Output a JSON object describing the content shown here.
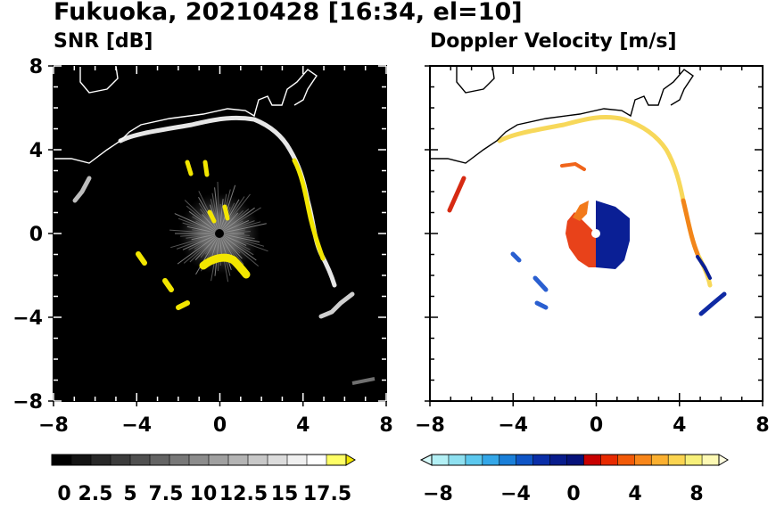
{
  "title": "Fukuoka, 20210428 [16:34, el=10]",
  "panels": [
    {
      "id": "snr",
      "title": "SNR [dB]",
      "background": "#000000",
      "colorbar": {
        "labels": [
          "0",
          "2.5",
          "5",
          "7.5",
          "10",
          "12.5",
          "15",
          "17.5"
        ],
        "extend": "max",
        "colors": [
          "#000000",
          "#141414",
          "#282828",
          "#3c3c3c",
          "#505050",
          "#646464",
          "#787878",
          "#8c8c8c",
          "#a0a0a0",
          "#b4b4b4",
          "#c8c8c8",
          "#dcdcdc",
          "#f0f0f0",
          "#ffffff",
          "#ffff66"
        ],
        "extend_color": "#f2e600"
      }
    },
    {
      "id": "doppler",
      "title": "Doppler Velocity [m/s]",
      "background": "#ffffff",
      "colorbar": {
        "labels": [
          "−8",
          "−4",
          "0",
          "4",
          "8"
        ],
        "extend": "both",
        "colors": [
          "#b3f0f5",
          "#8ee0f0",
          "#5cc8ee",
          "#34a7e8",
          "#1a7fd9",
          "#0f55c6",
          "#0a2ea8",
          "#081c8c",
          "#06127a",
          "#c80000",
          "#e82a00",
          "#f25a08",
          "#f8861a",
          "#fbb030",
          "#fbd450",
          "#f7f07a",
          "#fdf9b4"
        ],
        "low_color": "#d8fbfb",
        "high_color": "#fffde0"
      }
    }
  ],
  "axes": {
    "x_ticks": [
      "−8",
      "−4",
      "0",
      "4",
      "8"
    ],
    "y_ticks": [
      "8",
      "4",
      "0",
      "−4",
      "−8"
    ],
    "xlim": [
      -8,
      8
    ],
    "ylim": [
      -8,
      8
    ]
  },
  "colors": {
    "snr_echo": "#d9d9d9",
    "snr_high": "#f2e600",
    "radar_site": "#000000",
    "coast": "#ffffff",
    "doppler_coast": "#000000"
  },
  "chart_data": [
    {
      "type": "heatmap",
      "title": "SNR [dB]",
      "xlim": [
        -8,
        8
      ],
      "ylim": [
        -8,
        8
      ],
      "x_ticks": [
        -8,
        -4,
        0,
        4,
        8
      ],
      "y_ticks": [
        -8,
        -4,
        0,
        4,
        8
      ],
      "colorbar_ticks": [
        0,
        2.5,
        5,
        7.5,
        10,
        12.5,
        15,
        17.5
      ],
      "colorbar_extend": "max",
      "radar_site": [
        0,
        0
      ]
    },
    {
      "type": "heatmap",
      "title": "Doppler Velocity [m/s]",
      "xlim": [
        -8,
        8
      ],
      "ylim": [
        -8,
        8
      ],
      "x_ticks": [
        -8,
        -4,
        0,
        4,
        8
      ],
      "y_ticks": [
        -8,
        -4,
        0,
        4,
        8
      ],
      "colorbar_ticks": [
        -8,
        -4,
        0,
        4,
        8
      ],
      "colorbar_extend": "both",
      "radar_site": [
        0,
        0
      ]
    }
  ]
}
